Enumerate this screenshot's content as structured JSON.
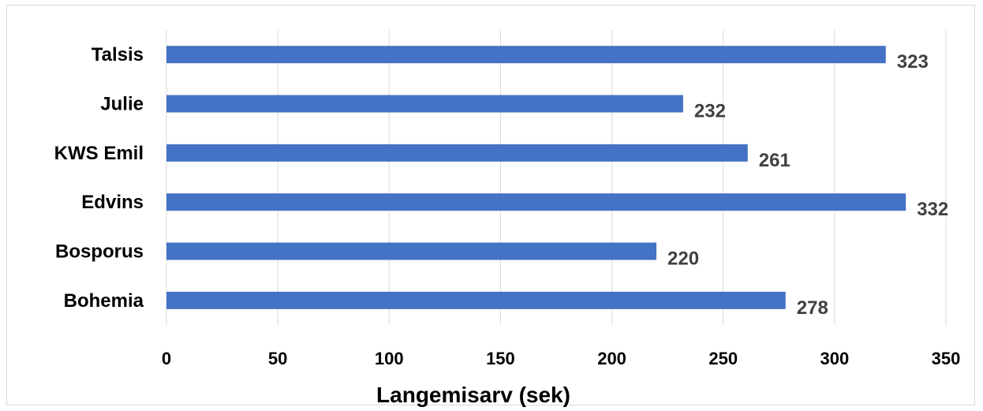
{
  "chart_data": {
    "type": "bar",
    "orientation": "horizontal",
    "categories": [
      "Talsis",
      "Julie",
      "KWS Emil",
      "Edvins",
      "Bosporus",
      "Bohemia"
    ],
    "values": [
      323,
      232,
      261,
      332,
      220,
      278
    ],
    "xlabel": "Langemisarv (sek)",
    "ylabel": "",
    "xlim": [
      0,
      350
    ],
    "xticks": [
      0,
      50,
      100,
      150,
      200,
      250,
      300,
      350
    ],
    "grid": true,
    "data_labels": true,
    "bar_color": "#4472C4"
  }
}
